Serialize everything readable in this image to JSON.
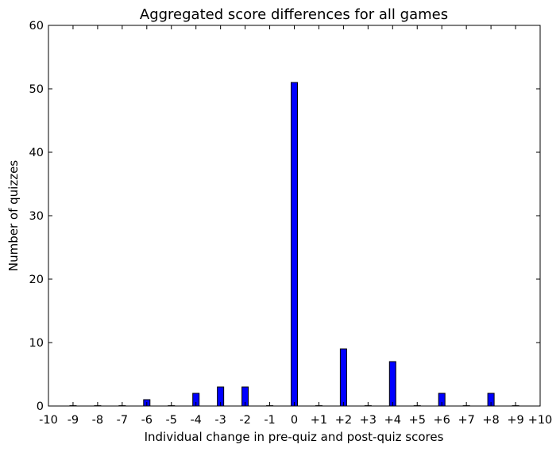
{
  "chart_data": {
    "type": "bar",
    "title": "Aggregated score differences for all games",
    "xlabel": "Individual change in pre-quiz and post-quiz scores",
    "ylabel": "Number of quizzes",
    "x_ticks": [
      "-10",
      "-9",
      "-8",
      "-7",
      "-6",
      "-5",
      "-4",
      "-3",
      "-2",
      "-1",
      "0",
      "+1",
      "+2",
      "+3",
      "+4",
      "+5",
      "+6",
      "+7",
      "+8",
      "+9",
      "+10"
    ],
    "y_ticks": [
      "0",
      "10",
      "20",
      "30",
      "40",
      "50",
      "60"
    ],
    "categories": [
      -9,
      -8,
      -7,
      -6,
      -5,
      -4,
      -3,
      -2,
      -1,
      0,
      1,
      2,
      3,
      4,
      5,
      6,
      7,
      8,
      9
    ],
    "values": [
      0,
      0,
      0,
      1,
      0,
      2,
      3,
      3,
      0,
      51,
      0,
      9,
      0,
      7,
      0,
      2,
      0,
      2,
      0
    ],
    "xlim": [
      -10,
      10
    ],
    "ylim": [
      0,
      60
    ],
    "bar_color": "#0000ff",
    "grid": false,
    "legend": "none"
  }
}
